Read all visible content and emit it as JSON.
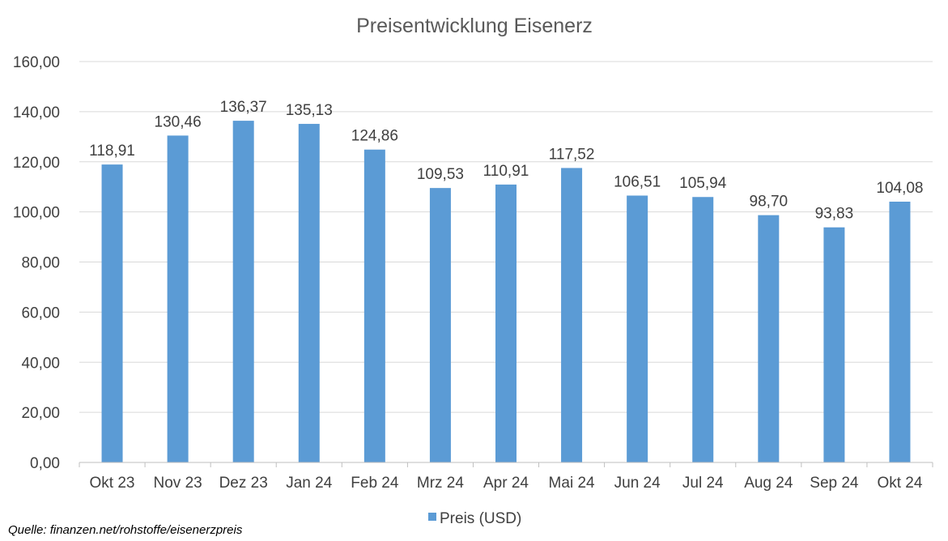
{
  "chart_data": {
    "type": "bar",
    "title": "Preisentwicklung Eisenerz",
    "categories": [
      "Okt 23",
      "Nov 23",
      "Dez 23",
      "Jan 24",
      "Feb 24",
      "Mrz 24",
      "Apr 24",
      "Mai 24",
      "Jun 24",
      "Jul 24",
      "Aug 24",
      "Sep 24",
      "Okt 24"
    ],
    "series": [
      {
        "name": "Preis (USD)",
        "values": [
          118.91,
          130.46,
          136.37,
          135.13,
          124.86,
          109.53,
          110.91,
          117.52,
          106.51,
          105.94,
          98.7,
          93.83,
          104.08
        ],
        "data_labels": [
          "118,91",
          "130,46",
          "136,37",
          "135,13",
          "124,86",
          "109,53",
          "110,91",
          "117,52",
          "106,51",
          "105,94",
          "98,70",
          "93,83",
          "104,08"
        ]
      }
    ],
    "ylim": [
      0,
      160
    ],
    "yticks": [
      0,
      20,
      40,
      60,
      80,
      100,
      120,
      140,
      160
    ],
    "ytick_labels": [
      "0,00",
      "20,00",
      "40,00",
      "60,00",
      "80,00",
      "100,00",
      "120,00",
      "140,00",
      "160,00"
    ],
    "xlabel": "",
    "ylabel": "",
    "grid": true,
    "legend_position": "bottom",
    "colors": {
      "bar": "#5B9BD5",
      "grid": "#D9D9D9",
      "axis": "#BFBFBF",
      "text": "#404040",
      "title": "#595959"
    }
  },
  "source": "Quelle: finanzen.net/rohstoffe/eisenerzpreis"
}
